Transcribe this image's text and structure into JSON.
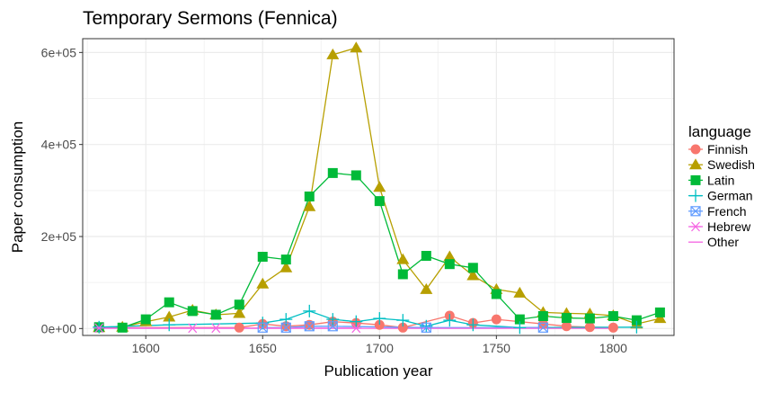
{
  "chart_data": {
    "type": "line",
    "title": "Temporary Sermons (Fennica)",
    "xlabel": "Publication year",
    "ylabel": "Paper consumption",
    "xlim": [
      1573,
      1826
    ],
    "ylim": [
      -15000,
      630000
    ],
    "x_ticks": [
      1600,
      1650,
      1700,
      1750,
      1800
    ],
    "x_tick_labels": [
      "1600",
      "1650",
      "1700",
      "1750",
      "1800"
    ],
    "y_ticks": [
      0,
      200000,
      400000,
      600000
    ],
    "y_tick_labels": [
      "0e+00",
      "2e+05",
      "4e+05",
      "6e+05"
    ],
    "grid": true,
    "legend_title": "language",
    "legend_position": "right",
    "series": [
      {
        "name": "Finnish",
        "color": "#F8766D",
        "marker": "circle",
        "x": [
          1580,
          1640,
          1650,
          1660,
          1670,
          1680,
          1690,
          1700,
          1710,
          1730,
          1740,
          1750,
          1770,
          1780,
          1790,
          1800
        ],
        "values": [
          2000,
          2000,
          10000,
          5000,
          8000,
          15000,
          12000,
          8000,
          2000,
          28000,
          12000,
          20000,
          10000,
          5000,
          3000,
          2000
        ]
      },
      {
        "name": "Swedish",
        "color": "#B79F00",
        "marker": "triangle",
        "x": [
          1580,
          1590,
          1600,
          1610,
          1620,
          1630,
          1640,
          1650,
          1660,
          1670,
          1680,
          1690,
          1700,
          1710,
          1720,
          1730,
          1740,
          1750,
          1760,
          1770,
          1780,
          1790,
          1800,
          1810,
          1820
        ],
        "values": [
          2000,
          3000,
          15000,
          25000,
          40000,
          30000,
          33000,
          97000,
          132000,
          265000,
          595000,
          610000,
          307000,
          150000,
          85000,
          156000,
          115000,
          85000,
          77000,
          35000,
          33000,
          32000,
          28000,
          10000,
          22000
        ]
      },
      {
        "name": "Latin",
        "color": "#00BA38",
        "marker": "square",
        "x": [
          1580,
          1590,
          1600,
          1610,
          1620,
          1630,
          1640,
          1650,
          1660,
          1670,
          1680,
          1690,
          1700,
          1710,
          1720,
          1730,
          1740,
          1750,
          1760,
          1770,
          1780,
          1790,
          1800,
          1810,
          1820
        ],
        "values": [
          3000,
          2000,
          20000,
          57000,
          38000,
          30000,
          52000,
          156000,
          150000,
          287000,
          338000,
          333000,
          277000,
          118000,
          158000,
          140000,
          132000,
          75000,
          20000,
          27000,
          23000,
          22000,
          27000,
          18000,
          35000
        ]
      },
      {
        "name": "German",
        "color": "#00BFC4",
        "marker": "plus",
        "x": [
          1580,
          1610,
          1650,
          1660,
          1670,
          1680,
          1690,
          1700,
          1710,
          1720,
          1730,
          1740,
          1760,
          1810
        ],
        "values": [
          3000,
          8000,
          12000,
          20000,
          38000,
          20000,
          15000,
          22000,
          18000,
          5000,
          18000,
          8000,
          2000,
          3000
        ]
      },
      {
        "name": "French",
        "color": "#619CFF",
        "marker": "boxcross",
        "x": [
          1650,
          1660,
          1670,
          1680,
          1720,
          1770
        ],
        "values": [
          2000,
          2000,
          5000,
          5000,
          2000,
          2000
        ]
      },
      {
        "name": "Hebrew",
        "color": "#F564E3",
        "marker": "asterisk",
        "x": [
          1580,
          1620,
          1630,
          1690
        ],
        "values": [
          1000,
          1000,
          1000,
          1000
        ]
      },
      {
        "name": "Other",
        "color": "#F564E3",
        "marker": "none",
        "x": [
          1580,
          1650,
          1700,
          1750,
          1800
        ],
        "values": [
          500,
          500,
          500,
          500,
          500
        ]
      }
    ]
  }
}
